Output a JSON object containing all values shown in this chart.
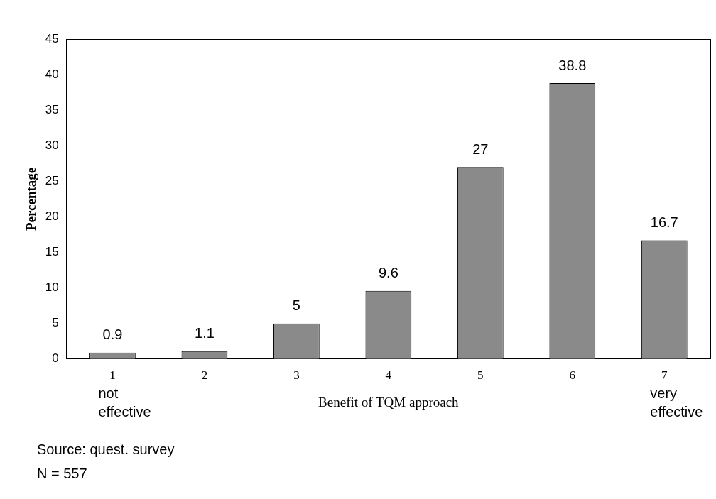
{
  "chart_data": {
    "type": "bar",
    "xlabel": "Benefit of TQM approach",
    "ylabel": "Percentage",
    "categories": [
      "1",
      "2",
      "3",
      "4",
      "5",
      "6",
      "7"
    ],
    "values": [
      0.9,
      1.1,
      5,
      9.6,
      27,
      38.8,
      16.7
    ],
    "color": "#8a8a8a",
    "ylim": [
      0,
      45
    ],
    "yticks": [
      0,
      5,
      10,
      15,
      20,
      25,
      30,
      35,
      40,
      45
    ],
    "grid": false,
    "legend": false,
    "data_labels": true,
    "annotations": [
      "not effective",
      "very effective",
      "Source: quest. survey",
      "N = 557"
    ]
  }
}
